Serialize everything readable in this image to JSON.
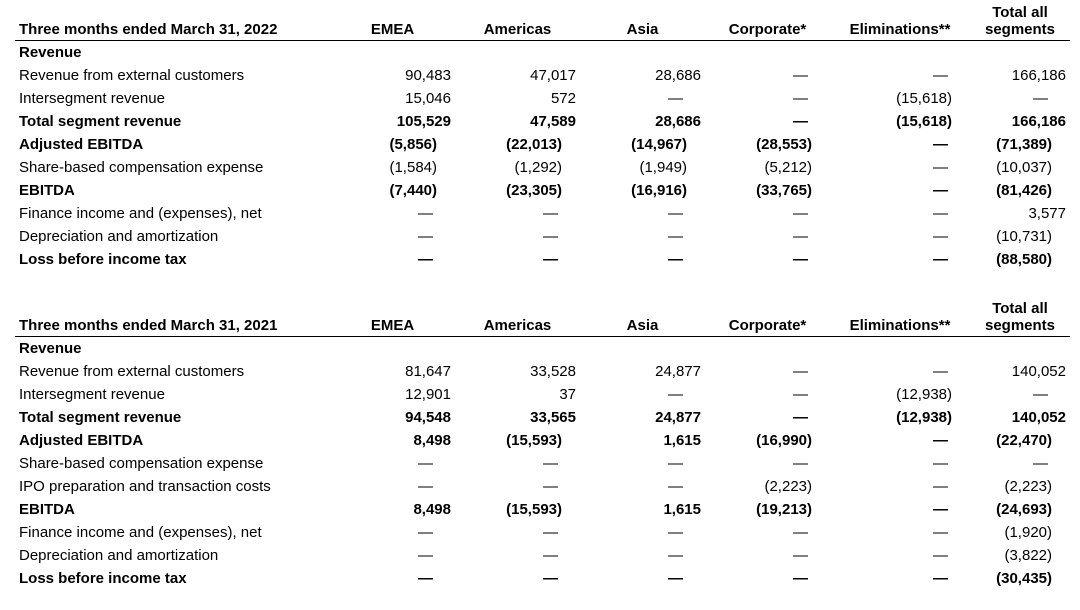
{
  "tables": [
    {
      "headers": [
        "Three months ended March 31, 2022",
        "EMEA",
        "Americas",
        "Asia",
        "Corporate*",
        "Eliminations**",
        "Total all segments"
      ],
      "header_last_lines": [
        "Total all",
        "segments"
      ],
      "rows": [
        {
          "label": "Revenue",
          "bold": true,
          "values": [
            "",
            "",
            "",
            "",
            "",
            ""
          ]
        },
        {
          "label": "Revenue from external customers",
          "bold": false,
          "values": [
            "90,483",
            "47,017",
            "28,686",
            "—",
            "—",
            "166,186"
          ]
        },
        {
          "label": "Intersegment revenue",
          "bold": false,
          "values": [
            "15,046",
            "572",
            "—",
            "—",
            "(15,618)",
            "—"
          ]
        },
        {
          "label": "Total segment revenue",
          "bold": true,
          "values": [
            "105,529",
            "47,589",
            "28,686",
            "—",
            "(15,618)",
            "166,186"
          ]
        },
        {
          "label": "Adjusted EBITDA",
          "bold": true,
          "values": [
            "(5,856)",
            "(22,013)",
            "(14,967)",
            "(28,553)",
            "—",
            "(71,389)"
          ]
        },
        {
          "label": "Share-based compensation expense",
          "bold": false,
          "values": [
            "(1,584)",
            "(1,292)",
            "(1,949)",
            "(5,212)",
            "—",
            "(10,037)"
          ]
        },
        {
          "label": "EBITDA",
          "bold": true,
          "values": [
            "(7,440)",
            "(23,305)",
            "(16,916)",
            "(33,765)",
            "—",
            "(81,426)"
          ]
        },
        {
          "label": "Finance income and (expenses), net",
          "bold": false,
          "values": [
            "—",
            "—",
            "—",
            "—",
            "—",
            "3,577"
          ]
        },
        {
          "label": "Depreciation and amortization",
          "bold": false,
          "values": [
            "—",
            "—",
            "—",
            "—",
            "—",
            "(10,731)"
          ]
        },
        {
          "label": "Loss before income tax",
          "bold": true,
          "values": [
            "—",
            "—",
            "—",
            "—",
            "—",
            "(88,580)"
          ]
        }
      ]
    },
    {
      "headers": [
        "Three months ended March 31, 2021",
        "EMEA",
        "Americas",
        "Asia",
        "Corporate*",
        "Eliminations**",
        "Total all segments"
      ],
      "header_last_lines": [
        "Total all",
        "segments"
      ],
      "rows": [
        {
          "label": "Revenue",
          "bold": true,
          "values": [
            "",
            "",
            "",
            "",
            "",
            ""
          ]
        },
        {
          "label": "Revenue from external customers",
          "bold": false,
          "values": [
            "81,647",
            "33,528",
            "24,877",
            "—",
            "—",
            "140,052"
          ]
        },
        {
          "label": "Intersegment revenue",
          "bold": false,
          "values": [
            "12,901",
            "37",
            "—",
            "—",
            "(12,938)",
            "—"
          ]
        },
        {
          "label": "Total segment revenue",
          "bold": true,
          "values": [
            "94,548",
            "33,565",
            "24,877",
            "—",
            "(12,938)",
            "140,052"
          ]
        },
        {
          "label": "Adjusted EBITDA",
          "bold": true,
          "values": [
            "8,498",
            "(15,593)",
            "1,615",
            "(16,990)",
            "—",
            "(22,470)"
          ]
        },
        {
          "label": "Share-based compensation expense",
          "bold": false,
          "values": [
            "—",
            "—",
            "—",
            "—",
            "—",
            "—"
          ]
        },
        {
          "label": "IPO preparation and transaction costs",
          "bold": false,
          "values": [
            "—",
            "—",
            "—",
            "(2,223)",
            "—",
            "(2,223)"
          ]
        },
        {
          "label": "EBITDA",
          "bold": true,
          "values": [
            "8,498",
            "(15,593)",
            "1,615",
            "(19,213)",
            "—",
            "(24,693)"
          ]
        },
        {
          "label": "Finance income and (expenses), net",
          "bold": false,
          "values": [
            "—",
            "—",
            "—",
            "—",
            "—",
            "(1,920)"
          ]
        },
        {
          "label": "Depreciation and amortization",
          "bold": false,
          "values": [
            "—",
            "—",
            "—",
            "—",
            "—",
            "(3,822)"
          ]
        },
        {
          "label": "Loss before income tax",
          "bold": true,
          "values": [
            "—",
            "—",
            "—",
            "—",
            "—",
            "(30,435)"
          ]
        }
      ]
    }
  ]
}
